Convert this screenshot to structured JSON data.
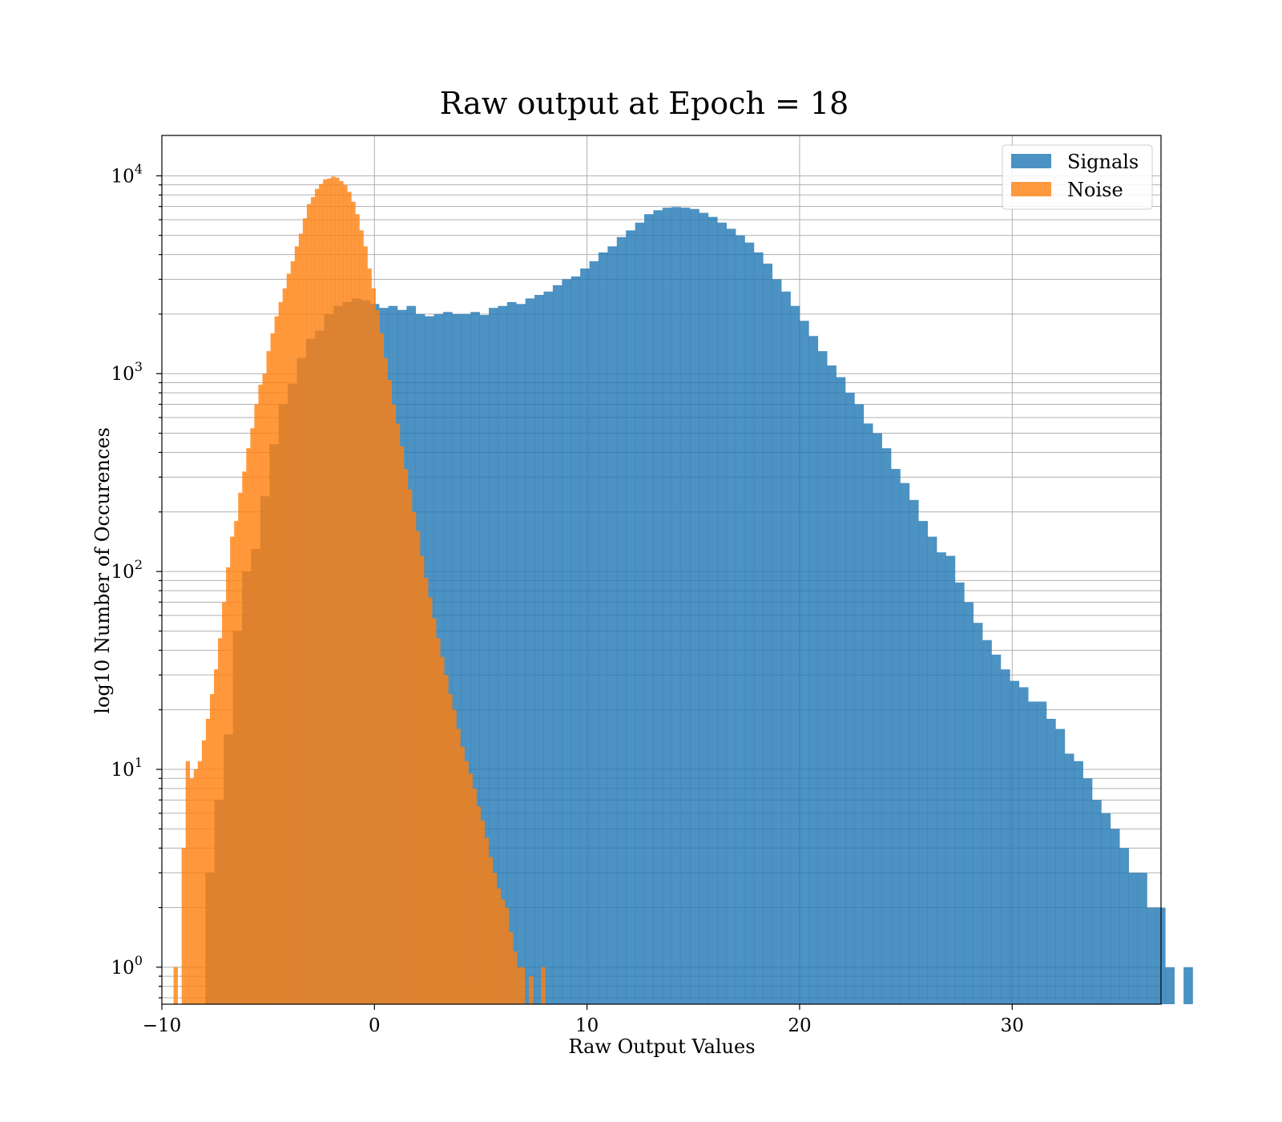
{
  "chart_data": {
    "type": "bar",
    "title": "Raw output at Epoch = 18",
    "xlabel": "Raw Output Values",
    "ylabel": "log10 Number of Occurences",
    "yscale": "log",
    "xlim": [
      -10,
      37
    ],
    "ylim": [
      0.65,
      16000
    ],
    "x_ticks": [
      -10,
      0,
      10,
      20,
      30
    ],
    "x_tick_labels": [
      "−10",
      "0",
      "10",
      "20",
      "30"
    ],
    "y_ticks": [
      1,
      10,
      100,
      1000,
      10000
    ],
    "y_tick_labels": [
      {
        "base": "10",
        "exp": "0"
      },
      {
        "base": "10",
        "exp": "1"
      },
      {
        "base": "10",
        "exp": "2"
      },
      {
        "base": "10",
        "exp": "3"
      },
      {
        "base": "10",
        "exp": "4"
      }
    ],
    "grid": true,
    "legend_position": "top-right",
    "series": [
      {
        "name": "Signals",
        "color": "#1f77b4",
        "alpha": 0.8,
        "bin_start": -7.95,
        "bin_width": 0.43,
        "values": [
          3,
          7,
          15,
          50,
          100,
          130,
          240,
          440,
          700,
          890,
          1200,
          1500,
          1650,
          2000,
          2200,
          2300,
          2400,
          2350,
          2250,
          2150,
          2200,
          2100,
          2200,
          2000,
          1950,
          2000,
          2050,
          2000,
          2000,
          2050,
          1980,
          2150,
          2200,
          2300,
          2250,
          2400,
          2500,
          2600,
          2800,
          3000,
          3100,
          3400,
          3700,
          4100,
          4400,
          4900,
          5300,
          5800,
          6400,
          6700,
          6900,
          6950,
          6900,
          6800,
          6500,
          6200,
          5800,
          5400,
          5000,
          4600,
          4100,
          3600,
          3000,
          2600,
          2200,
          1850,
          1550,
          1300,
          1100,
          960,
          800,
          700,
          560,
          500,
          420,
          330,
          280,
          230,
          180,
          150,
          125,
          120,
          88,
          70,
          55,
          45,
          38,
          32,
          28,
          26,
          22,
          22,
          18,
          16,
          12,
          11,
          9,
          7,
          6,
          5,
          4,
          3,
          3,
          2,
          2,
          1,
          0,
          1
        ]
      },
      {
        "name": "Noise",
        "color": "#ff7f0e",
        "alpha": 0.8,
        "bin_start": -9.45,
        "bin_width": 0.19,
        "values": [
          1,
          0,
          4,
          11,
          9,
          10,
          11,
          14,
          18,
          24,
          32,
          46,
          70,
          105,
          150,
          180,
          250,
          320,
          420,
          530,
          700,
          880,
          1000,
          1300,
          1600,
          1950,
          2300,
          2700,
          3200,
          3700,
          4400,
          5100,
          6100,
          7200,
          7800,
          8600,
          9100,
          9600,
          9700,
          9900,
          9800,
          9400,
          9000,
          8300,
          7400,
          6400,
          5300,
          4400,
          3400,
          2700,
          2100,
          1600,
          1200,
          930,
          700,
          560,
          430,
          330,
          260,
          200,
          160,
          120,
          93,
          74,
          58,
          46,
          37,
          30,
          24,
          20,
          16,
          13,
          11,
          9.5,
          8,
          6.5,
          5.5,
          4.5,
          3.6,
          3,
          2.5,
          2.2,
          2,
          1.5,
          1.2,
          1,
          1,
          0,
          0.9,
          0,
          0,
          1
        ]
      }
    ]
  }
}
